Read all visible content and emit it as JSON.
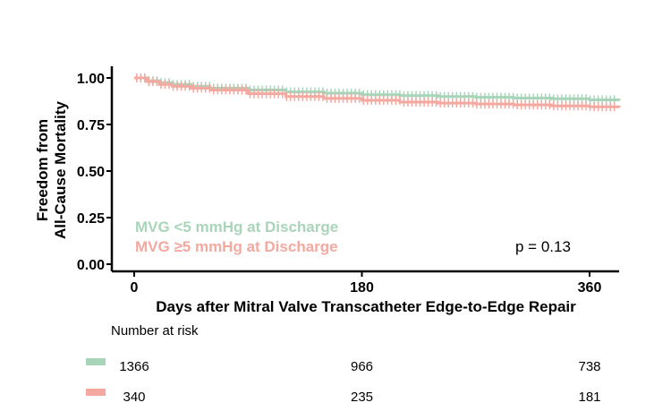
{
  "chart_data": {
    "type": "line",
    "subtype": "kaplan-meier",
    "ylabel_line1": "Freedom from",
    "ylabel_line2": "All-Cause Mortality",
    "xlabel": "Days after Mitral Valve Transcatheter Edge-to-Edge Repair",
    "xlim": [
      -20,
      390
    ],
    "ylim": [
      -0.03,
      1.05
    ],
    "x_ticks": [
      0,
      180,
      360
    ],
    "x_tick_labels": [
      "0",
      "180",
      "360"
    ],
    "y_ticks": [
      0,
      0.25,
      0.5,
      0.75,
      1.0
    ],
    "y_tick_labels": [
      "0.00",
      "0.25",
      "0.50",
      "0.75",
      "1.00"
    ],
    "grid": false,
    "series": [
      {
        "name": "MVG <5 mmHg at Discharge",
        "color": "#a8d5b9",
        "x": [
          0,
          10,
          20,
          30,
          45,
          60,
          90,
          120,
          150,
          180,
          210,
          240,
          270,
          300,
          330,
          360,
          385
        ],
        "y": [
          1.0,
          0.985,
          0.975,
          0.965,
          0.955,
          0.945,
          0.935,
          0.925,
          0.918,
          0.91,
          0.905,
          0.9,
          0.896,
          0.892,
          0.888,
          0.882,
          0.878
        ]
      },
      {
        "name": "MVG ≥5 mmHg at Discharge",
        "color": "#f4a9a0",
        "x": [
          0,
          10,
          20,
          30,
          45,
          60,
          90,
          120,
          150,
          180,
          210,
          240,
          270,
          300,
          330,
          360,
          385
        ],
        "y": [
          1.0,
          0.98,
          0.965,
          0.955,
          0.945,
          0.935,
          0.915,
          0.9,
          0.89,
          0.88,
          0.87,
          0.865,
          0.86,
          0.855,
          0.85,
          0.845,
          0.84
        ]
      }
    ],
    "p_value_text": "p = 0.13",
    "risk_table": {
      "title": "Number at risk",
      "times": [
        0,
        180,
        360
      ],
      "rows": [
        {
          "color": "#a8d5b9",
          "values": [
            "1366",
            "966",
            "738"
          ]
        },
        {
          "color": "#f4a9a0",
          "values": [
            "340",
            "235",
            "181"
          ]
        }
      ]
    }
  }
}
